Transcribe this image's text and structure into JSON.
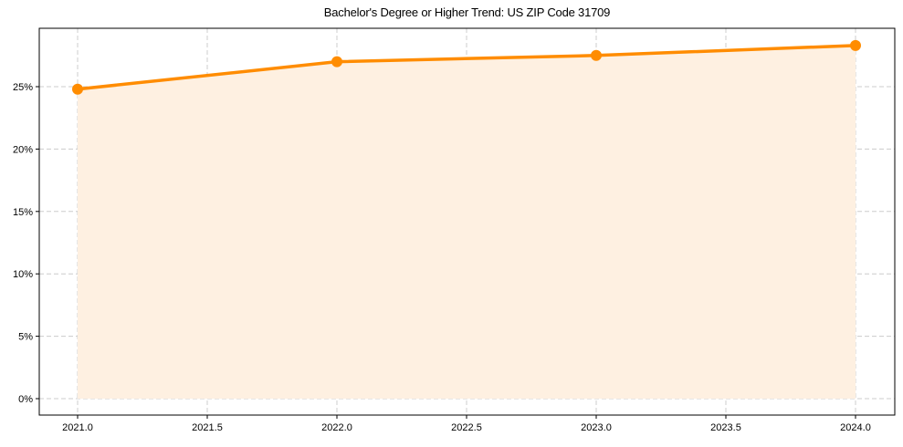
{
  "chart_data": {
    "type": "line",
    "title": "Bachelor's Degree or Higher Trend: US ZIP Code 31709",
    "xlabel": "",
    "ylabel": "",
    "x": [
      2021,
      2022,
      2023,
      2024
    ],
    "series": [
      {
        "name": "Bachelor's Degree or Higher",
        "values": [
          24.8,
          27.0,
          27.5,
          28.3
        ],
        "color": "#ff8c00",
        "fill": "#fef0e1"
      }
    ],
    "x_ticks": [
      "2021.0",
      "2021.5",
      "2022.0",
      "2022.5",
      "2023.0",
      "2023.5",
      "2024.0"
    ],
    "x_tick_values": [
      2021.0,
      2021.5,
      2022.0,
      2022.5,
      2023.0,
      2023.5,
      2024.0
    ],
    "y_ticks": [
      "0%",
      "5%",
      "10%",
      "15%",
      "20%",
      "25%"
    ],
    "y_tick_values": [
      0,
      5,
      10,
      15,
      20,
      25
    ],
    "xlim": [
      2020.85,
      2024.15
    ],
    "ylim": [
      -1.4,
      29.6
    ],
    "grid": true,
    "legend": "none",
    "area_fill": true
  }
}
